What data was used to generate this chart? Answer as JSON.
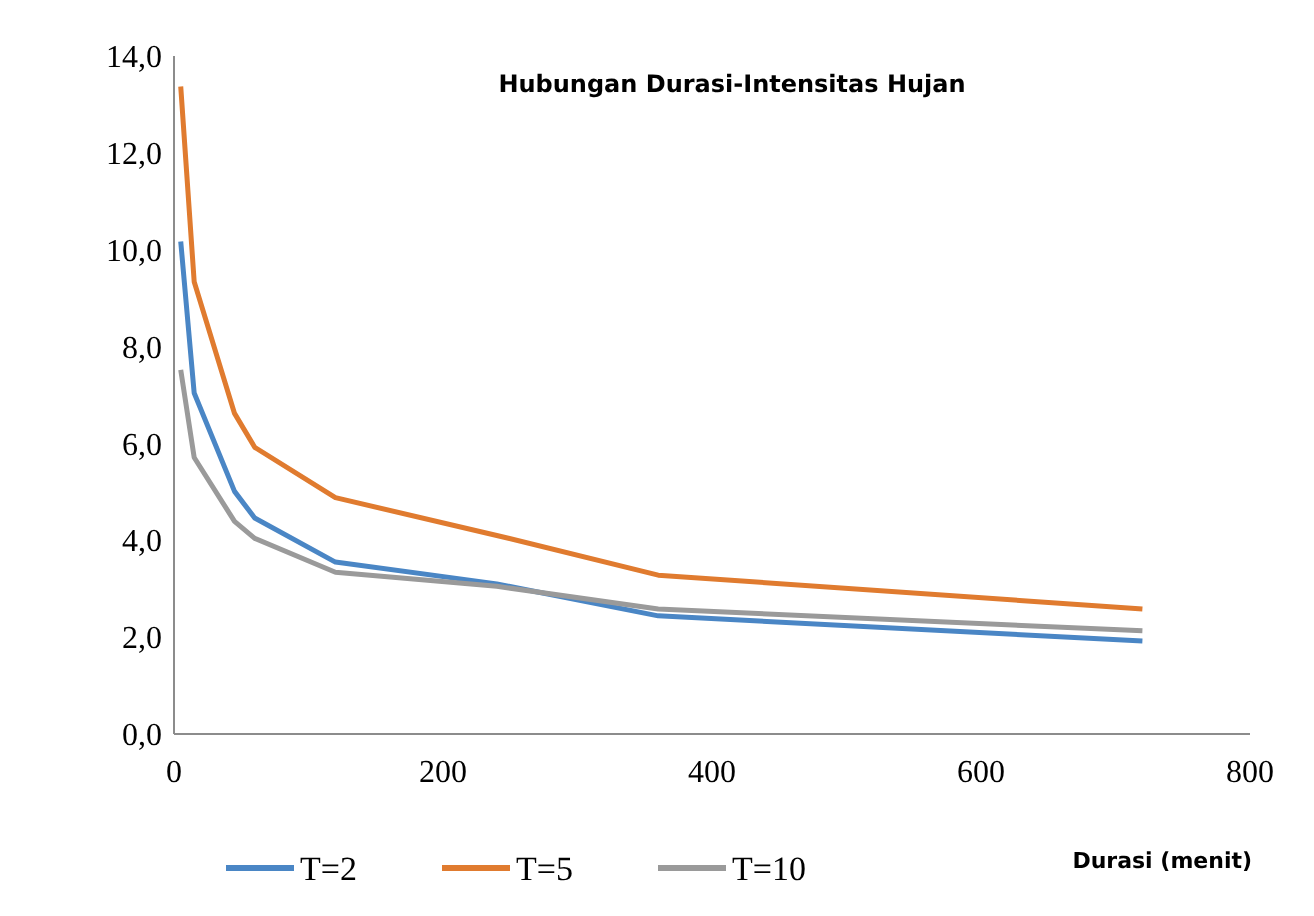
{
  "chart_data": {
    "type": "line",
    "title": "Hubungan Durasi-Intensitas Hujan",
    "xlabel": "Durasi (menit)",
    "x": [
      5,
      15,
      45,
      60,
      120,
      240,
      360,
      720
    ],
    "xlim": [
      0,
      800
    ],
    "xticks": [
      0,
      200,
      400,
      600,
      800
    ],
    "ylim": [
      0,
      14
    ],
    "yticks": [
      {
        "value": 0,
        "label": "0,0"
      },
      {
        "value": 2,
        "label": "2,0"
      },
      {
        "value": 4,
        "label": "4,0"
      },
      {
        "value": 6,
        "label": "6,0"
      },
      {
        "value": 8,
        "label": "8,0"
      },
      {
        "value": 10,
        "label": "10,0"
      },
      {
        "value": 12,
        "label": "12,0"
      },
      {
        "value": 14,
        "label": "14,0"
      }
    ],
    "grid": false,
    "legend": "bottom",
    "marker": "none",
    "line_style": "solid",
    "series": [
      {
        "name": "T=2",
        "color": "#4a86c5",
        "values": [
          10.17,
          7.04,
          5.01,
          4.46,
          3.55,
          3.1,
          2.44,
          1.92
        ]
      },
      {
        "name": "T=5",
        "color": "#e07b2f",
        "values": [
          13.37,
          9.34,
          6.62,
          5.92,
          4.88,
          4.1,
          3.28,
          2.58
        ]
      },
      {
        "name": "T=10",
        "color": "#9a9a9a",
        "values": [
          7.52,
          5.71,
          4.39,
          4.04,
          3.34,
          3.05,
          2.58,
          2.13
        ]
      }
    ]
  }
}
